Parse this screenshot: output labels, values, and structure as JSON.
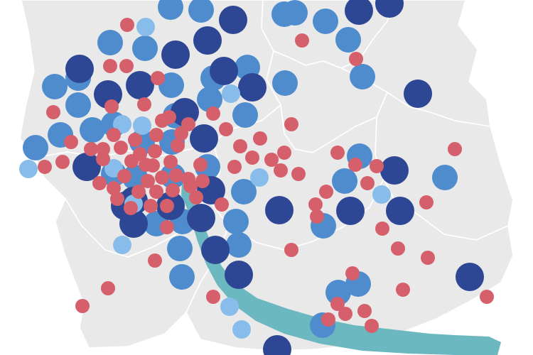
{
  "map": {
    "colors": {
      "background": "#ffffff",
      "land": "#e9e9e9",
      "border": "#ffffff",
      "lake": "#6cb8c1"
    },
    "categories": [
      {
        "key": "dark",
        "color": "#2e4795"
      },
      {
        "key": "medium",
        "color": "#4e8ccd"
      },
      {
        "key": "light",
        "color": "#88bcea"
      },
      {
        "key": "red",
        "color": "#d5606b"
      }
    ],
    "marker_counts": {
      "dark": 28,
      "medium": 43,
      "light": 12,
      "red": 86
    }
  }
}
